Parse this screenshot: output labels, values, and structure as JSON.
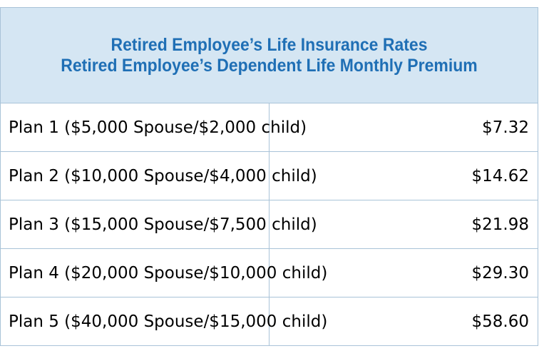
{
  "header": {
    "title_line1": "Retired Employee’s Life Insurance Rates",
    "title_line2": "Retired Employee’s Dependent Life Monthly Premium"
  },
  "rows": [
    {
      "plan": "Plan 1 ($5,000 Spouse/$2,000 child)",
      "premium": "$7.32"
    },
    {
      "plan": "Plan 2 ($10,000 Spouse/$4,000 child)",
      "premium": "$14.62"
    },
    {
      "plan": "Plan 3 ($15,000 Spouse/$7,500 child)",
      "premium": "$21.98"
    },
    {
      "plan": "Plan 4 ($20,000 Spouse/$10,000 child)",
      "premium": "$29.30"
    },
    {
      "plan": "Plan 5 ($40,000 Spouse/$15,000 child)",
      "premium": "$58.60"
    }
  ],
  "colors": {
    "header_background": "#d5e6f3",
    "header_text": "#1f6fb5",
    "border": "#a9c3d8"
  }
}
